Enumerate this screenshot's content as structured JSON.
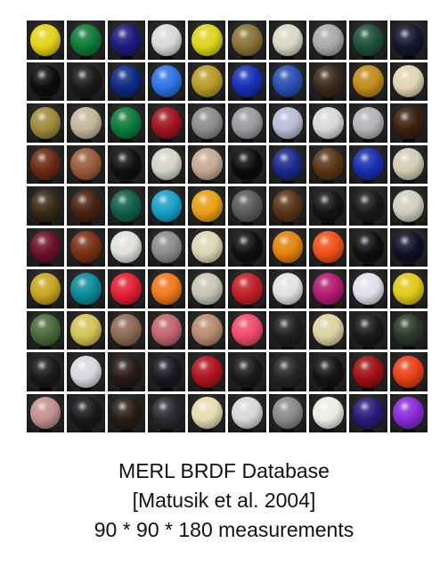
{
  "caption": {
    "line1": "MERL BRDF Database",
    "line2": "[Matusik et al. 2004]",
    "line3": "90 * 90 * 180 measurements"
  },
  "spheres": [
    [
      "#e4d21a",
      "#0f7a36",
      "#1d1a7a",
      "#d9d9d9",
      "#dcd51c",
      "#8a7236",
      "#d8d6c4",
      "#a9a9a9",
      "#1e4f3a",
      "#151530"
    ],
    [
      "#0d0d0d",
      "#1a1a1a",
      "#0e2a82",
      "#2d73e4",
      "#b89a2a",
      "#1630b4",
      "#2a4fb0",
      "#3a2a1e",
      "#c08c1c",
      "#e2d4b4"
    ],
    [
      "#9e8a3a",
      "#c4b69a",
      "#0c7a3a",
      "#a0141e",
      "#8c8c8c",
      "#9a9aa0",
      "#b8bcd6",
      "#d8d8d8",
      "#b4b4b8",
      "#3a2010"
    ],
    [
      "#6a2a10",
      "#9a5a3a",
      "#101010",
      "#d6d4c8",
      "#c4aa96",
      "#0c0c0c",
      "#1a2a8a",
      "#5a3616",
      "#1a2eb0",
      "#d2ccb6"
    ],
    [
      "#3a2a16",
      "#4a2212",
      "#125e4a",
      "#1aa0c8",
      "#e8a016",
      "#5a5a5a",
      "#5a3418",
      "#141414",
      "#1a1a1a",
      "#d0cebe"
    ],
    [
      "#6a1228",
      "#7a3016",
      "#e0e0dc",
      "#8c8c8c",
      "#dcd6b4",
      "#101010",
      "#e4820c",
      "#f0501a",
      "#101010",
      "#101028"
    ],
    [
      "#c8a41e",
      "#0c8a9a",
      "#e21e34",
      "#f0781a",
      "#c8c4b4",
      "#c21e28",
      "#e2e2e2",
      "#b41a70",
      "#e0e0ee",
      "#e0c81a"
    ],
    [
      "#4a6a3a",
      "#d4c456",
      "#8c6a54",
      "#c2646e",
      "#b88a70",
      "#f04a6a",
      "#202020",
      "#dcd2a2",
      "#1a1a1a",
      "#2a3a2a"
    ],
    [
      "#1a1a1a",
      "#d8d8dc",
      "#2a1a16",
      "#1a1a24",
      "#b0141e",
      "#1a1a1a",
      "#262626",
      "#141414",
      "#a01016",
      "#e8401a"
    ],
    [
      "#c29090",
      "#1a1a1a",
      "#2a1e16",
      "#2a2a30",
      "#e6dcb0",
      "#d8d8d8",
      "#8a8a8a",
      "#ecece8",
      "#2a1a7a",
      "#8a2ad8"
    ]
  ]
}
